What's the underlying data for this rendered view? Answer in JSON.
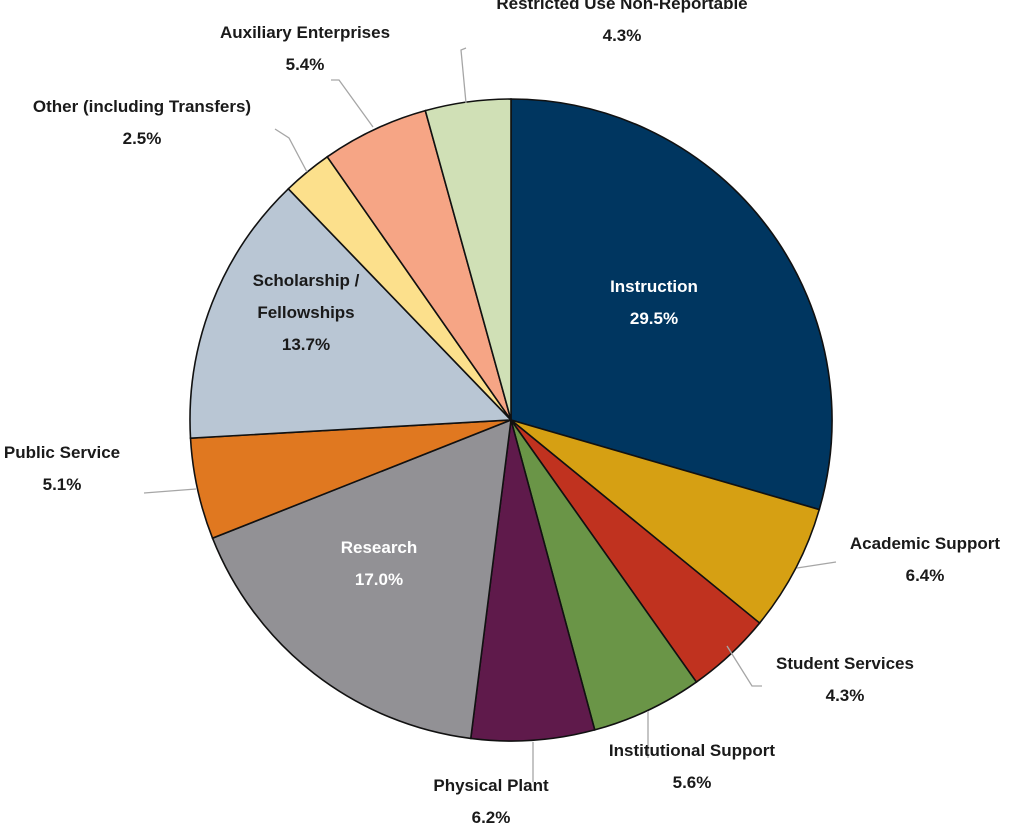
{
  "chart_data": {
    "type": "pie",
    "title": "",
    "start": "top, clockwise",
    "slices": [
      {
        "label": "Instruction",
        "value": 29.5,
        "value_label": "29.5%",
        "color": "#003660"
      },
      {
        "label": "Academic Support",
        "value": 6.4,
        "value_label": "6.4%",
        "color": "#D6A013"
      },
      {
        "label": "Student Services",
        "value": 4.3,
        "value_label": "4.3%",
        "color": "#C0321F"
      },
      {
        "label": "Institutional Support",
        "value": 5.6,
        "value_label": "5.6%",
        "color": "#6A9547"
      },
      {
        "label": "Physical Plant",
        "value": 6.2,
        "value_label": "6.2%",
        "color": "#5F1A4B"
      },
      {
        "label": "Research",
        "value": 17.0,
        "value_label": "17.0%",
        "color": "#929195"
      },
      {
        "label": "Public Service",
        "value": 5.1,
        "value_label": "5.1%",
        "color": "#E07820"
      },
      {
        "label": "Scholarship / Fellowships",
        "label_lines": [
          "Scholarship /",
          "Fellowships"
        ],
        "value": 13.7,
        "value_label": "13.7%",
        "color": "#B9C6D4"
      },
      {
        "label": "Other (including Transfers)",
        "value": 2.5,
        "value_label": "2.5%",
        "color": "#FCE08C"
      },
      {
        "label": "Auxiliary Enterprises",
        "value": 5.4,
        "value_label": "5.4%",
        "color": "#F6A585"
      },
      {
        "label": "Restricted Use Non-Reportable",
        "value": 4.3,
        "value_label": "4.3%",
        "color": "#D0E0B6"
      }
    ]
  }
}
